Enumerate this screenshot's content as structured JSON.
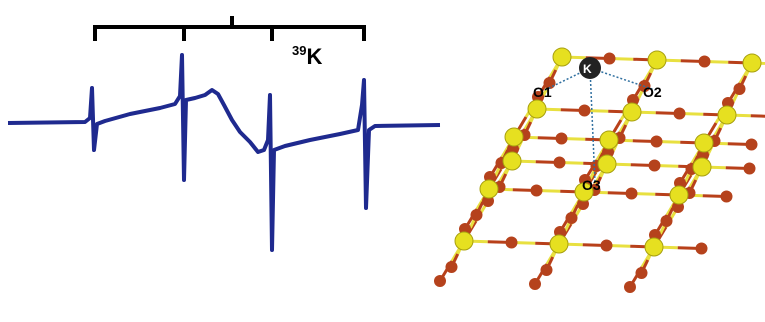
{
  "spectrum": {
    "isotope_mass": "39",
    "isotope_symbol": "K"
  },
  "structure": {
    "center_atom": "K",
    "oxygen_labels": [
      "O1",
      "O2",
      "O3"
    ]
  }
}
